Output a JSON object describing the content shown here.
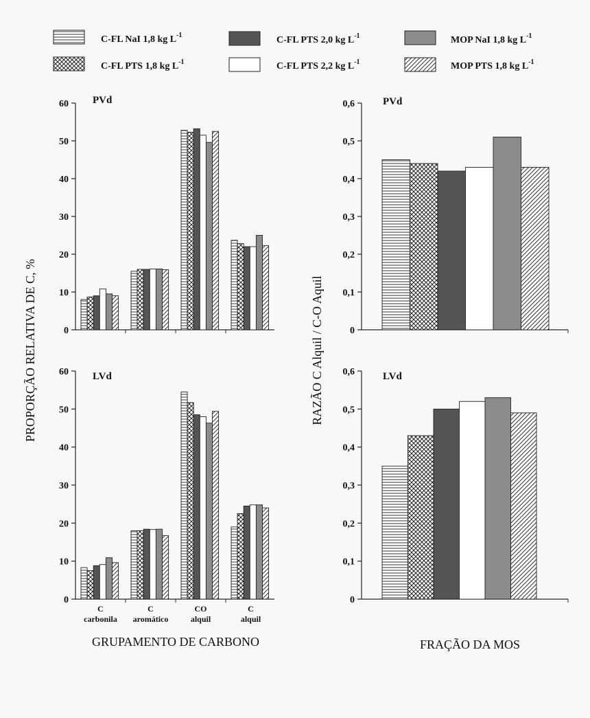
{
  "legend": [
    {
      "label": "C-FL NaI 1,8 kg L",
      "sup": "-1",
      "pattern": "hlines"
    },
    {
      "label": "C-FL PTS 1,8 kg L",
      "sup": "-1",
      "pattern": "crosshatch"
    },
    {
      "label": "C-FL PTS 2,0 kg L",
      "sup": "-1",
      "pattern": "dark"
    },
    {
      "label": "C-FL PTS 2,2 kg L",
      "sup": "-1",
      "pattern": "white"
    },
    {
      "label": "MOP NaI 1,8 kg L",
      "sup": "-1",
      "pattern": "gray"
    },
    {
      "label": "MOP PTS 1,8 kg L",
      "sup": "-1",
      "pattern": "diag"
    }
  ],
  "colors": {
    "dark": "#555555",
    "gray": "#8c8c8c",
    "white": "#ffffff",
    "line": "#222222"
  },
  "axis_titles": {
    "left_y": "PROPORÇÃO RELATIVA DE C, %",
    "left_x": "GRUPAMENTO DE CARBONO",
    "right_y": "RAZÃO C Alquil / C-O Aquil",
    "right_x": "FRAÇÃO DA MOS"
  },
  "chart_data": [
    {
      "type": "bar",
      "title": "PVd",
      "categories": [
        "C carbonila",
        "C aromático",
        "CO alquil",
        "C alquil"
      ],
      "category_labels": [
        [
          "C",
          "carbonila"
        ],
        [
          "C",
          "aromático"
        ],
        [
          "CO",
          "alquil"
        ],
        [
          "C",
          "alquil"
        ]
      ],
      "show_category_labels": false,
      "ylim": [
        0,
        60
      ],
      "yticks": [
        "0",
        "10",
        "20",
        "30",
        "40",
        "50",
        "60"
      ],
      "series": [
        {
          "name": "C-FL NaI 1,8 kg L-1",
          "values": [
            8,
            15.5,
            52.8,
            23.7
          ]
        },
        {
          "name": "C-FL PTS 1,8 kg L-1",
          "values": [
            8.7,
            16,
            52.3,
            22.8
          ]
        },
        {
          "name": "C-FL PTS 2,0 kg L-1",
          "values": [
            9,
            16,
            53.2,
            22
          ]
        },
        {
          "name": "C-FL PTS 2,2 kg L-1",
          "values": [
            10.8,
            16.1,
            51.5,
            22
          ]
        },
        {
          "name": "MOP NaI 1,8 kg L-1",
          "values": [
            9.5,
            16.1,
            49.6,
            25
          ]
        },
        {
          "name": "MOP PTS 1,8 kg L-1",
          "values": [
            9,
            15.9,
            52.5,
            22.3
          ]
        }
      ]
    },
    {
      "type": "bar",
      "title": "PVd",
      "categories": [
        "C-FL NaI 1,8 kg L-1",
        "C-FL PTS 1,8 kg L-1",
        "C-FL PTS 2,0 kg L-1",
        "C-FL PTS 2,2 kg L-1",
        "MOP NaI 1,8 kg L-1",
        "MOP PTS 1,8 kg L-1"
      ],
      "ylim": [
        0,
        0.6
      ],
      "yticks": [
        "0",
        "0,1",
        "0,2",
        "0,3",
        "0,4",
        "0,5",
        "0,6"
      ],
      "values": [
        0.45,
        0.44,
        0.42,
        0.43,
        0.51,
        0.43
      ]
    },
    {
      "type": "bar",
      "title": "LVd",
      "categories": [
        "C carbonila",
        "C aromático",
        "CO alquil",
        "C alquil"
      ],
      "category_labels": [
        [
          "C",
          "carbonila"
        ],
        [
          "C",
          "aromático"
        ],
        [
          "CO",
          "alquil"
        ],
        [
          "C",
          "alquil"
        ]
      ],
      "show_category_labels": true,
      "ylim": [
        0,
        60
      ],
      "yticks": [
        "0",
        "10",
        "20",
        "30",
        "40",
        "50",
        "60"
      ],
      "series": [
        {
          "name": "C-FL NaI 1,8 kg L-1",
          "values": [
            8.3,
            18,
            54.5,
            19
          ]
        },
        {
          "name": "C-FL PTS 1,8 kg L-1",
          "values": [
            7.5,
            18,
            51.7,
            22.5
          ]
        },
        {
          "name": "C-FL PTS 2,0 kg L-1",
          "values": [
            8.8,
            18.4,
            48.5,
            24.5
          ]
        },
        {
          "name": "C-FL PTS 2,2 kg L-1",
          "values": [
            9.1,
            18.3,
            48,
            24.8
          ]
        },
        {
          "name": "MOP NaI 1,8 kg L-1",
          "values": [
            10.9,
            18.4,
            46.3,
            24.8
          ]
        },
        {
          "name": "MOP PTS 1,8 kg L-1",
          "values": [
            9.6,
            16.7,
            49.4,
            24
          ]
        }
      ]
    },
    {
      "type": "bar",
      "title": "LVd",
      "categories": [
        "C-FL NaI 1,8 kg L-1",
        "C-FL PTS 1,8 kg L-1",
        "C-FL PTS 2,0 kg L-1",
        "C-FL PTS 2,2 kg L-1",
        "MOP NaI 1,8 kg L-1",
        "MOP PTS 1,8 kg L-1"
      ],
      "ylim": [
        0,
        0.6
      ],
      "yticks": [
        "0",
        "0,1",
        "0,2",
        "0,3",
        "0,4",
        "0,5",
        "0,6"
      ],
      "values": [
        0.35,
        0.43,
        0.5,
        0.52,
        0.53,
        0.49
      ]
    }
  ]
}
